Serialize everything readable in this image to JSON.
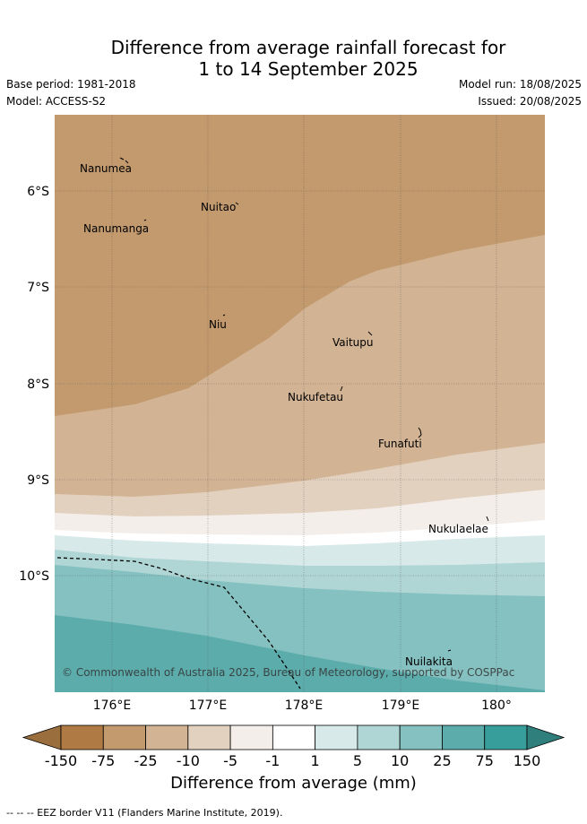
{
  "header": {
    "title_line1": "Difference from average rainfall forecast for",
    "title_line2": "1 to 14 September 2025",
    "base_period": "Base period: 1981-2018",
    "model": "Model: ACCESS-S2",
    "model_run": "Model run: 18/08/2025",
    "issued": "Issued: 20/08/2025"
  },
  "map": {
    "lat_labels": [
      "6°S",
      "7°S",
      "8°S",
      "9°S",
      "10°S"
    ],
    "lon_labels": [
      "176°E",
      "177°E",
      "178°E",
      "179°E",
      "180°"
    ],
    "places": [
      "Nanumea",
      "Nuitao",
      "Nanumanga",
      "Niu",
      "Vaitupu",
      "Nukufetau",
      "Funafuti",
      "Nukulaelae",
      "Nuilakita"
    ],
    "copyright": "© Commonwealth of Australia 2025, Bureau of Meteorology, supported by COSPPac"
  },
  "colorbar": {
    "ticks": [
      "-150",
      "-75",
      "-25",
      "-10",
      "-5",
      "-1",
      "1",
      "5",
      "10",
      "25",
      "75",
      "150"
    ],
    "colors": [
      "#b07a44",
      "#c29a6e",
      "#d2b393",
      "#e3d1c0",
      "#f3eee9",
      "#ffffff",
      "#d7e9e8",
      "#afd6d5",
      "#84c1c0",
      "#5cacac",
      "#389e9b"
    ],
    "under_color": "#9b6e3d",
    "over_color": "#2f7f7d",
    "title": "Difference from average (mm)"
  },
  "footer": {
    "legend": "--  --  -- EEZ border V11 (Flanders Marine Institute, 2019)."
  }
}
